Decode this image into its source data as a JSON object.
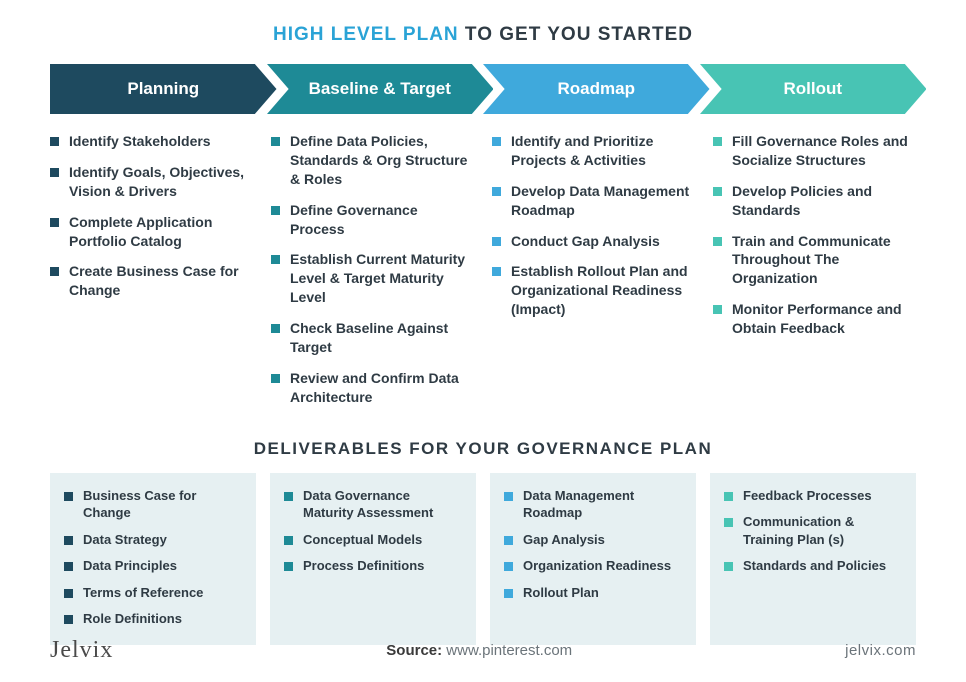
{
  "title_accent": "HIGH LEVEL PLAN",
  "title_rest": " TO GET YOU STARTED",
  "stages": [
    {
      "label": "Planning",
      "fill": "#1e4a5f",
      "text_color": "#ffffff",
      "items": [
        "Identify Stakeholders",
        "Identify Goals, Objectives, Vision & Drivers",
        "Complete Application Portfolio Catalog",
        "Create Business Case for Change"
      ]
    },
    {
      "label": "Baseline & Target",
      "fill": "#1e8a96",
      "text_color": "#ffffff",
      "items": [
        "Define Data Policies, Standards & Org Structure & Roles",
        "Define Governance Process",
        "Establish Current Maturity Level & Target Maturity Level",
        "Check Baseline Against Target",
        "Review and Confirm Data Architecture"
      ]
    },
    {
      "label": "Roadmap",
      "fill": "#3fa9dc",
      "text_color": "#ffffff",
      "items": [
        "Identify and Prioritize Projects & Activities",
        "Develop Data Management Roadmap",
        "Conduct Gap Analysis",
        "Establish Rollout Plan and Organizational Readiness (Impact)"
      ]
    },
    {
      "label": "Rollout",
      "fill": "#48c4b4",
      "text_color": "#ffffff",
      "items": [
        "Fill Governance Roles and Socialize Structures",
        "Develop Policies and Standards",
        "Train and Communicate Throughout The Organization",
        "Monitor Performance and Obtain Feedback"
      ]
    }
  ],
  "subtitle": "DELIVERABLES FOR YOUR GOVERNANCE PLAN",
  "deliverables": [
    {
      "color": "#1e4a5f",
      "bg": "#e6f0f2",
      "items": [
        "Business Case for Change",
        "Data Strategy",
        "Data Principles",
        "Terms of Reference",
        "Role Definitions"
      ]
    },
    {
      "color": "#1e8a96",
      "bg": "#e6f0f2",
      "items": [
        "Data Governance Maturity Assessment",
        "Conceptual Models",
        "Process Definitions"
      ]
    },
    {
      "color": "#3fa9dc",
      "bg": "#e6f0f2",
      "items": [
        "Data Management Roadmap",
        "Gap Analysis",
        "Organization Readiness",
        "Rollout Plan"
      ]
    },
    {
      "color": "#48c4b4",
      "bg": "#e6f0f2",
      "items": [
        "Feedback Processes",
        "Communication & Training Plan (s)",
        "Standards and Policies"
      ]
    }
  ],
  "footer": {
    "brand": "Jelvix",
    "source_label": "Source: ",
    "source_value": "www.pinterest.com",
    "site": "jelvix.com"
  },
  "style": {
    "title_accent_color": "#2aa3d6",
    "title_rest_color": "#2f3b44",
    "body_text_color": "#2f3b44",
    "box_bg": "#e6f0f2",
    "arrow_height": 50,
    "bullet_size": 9
  }
}
